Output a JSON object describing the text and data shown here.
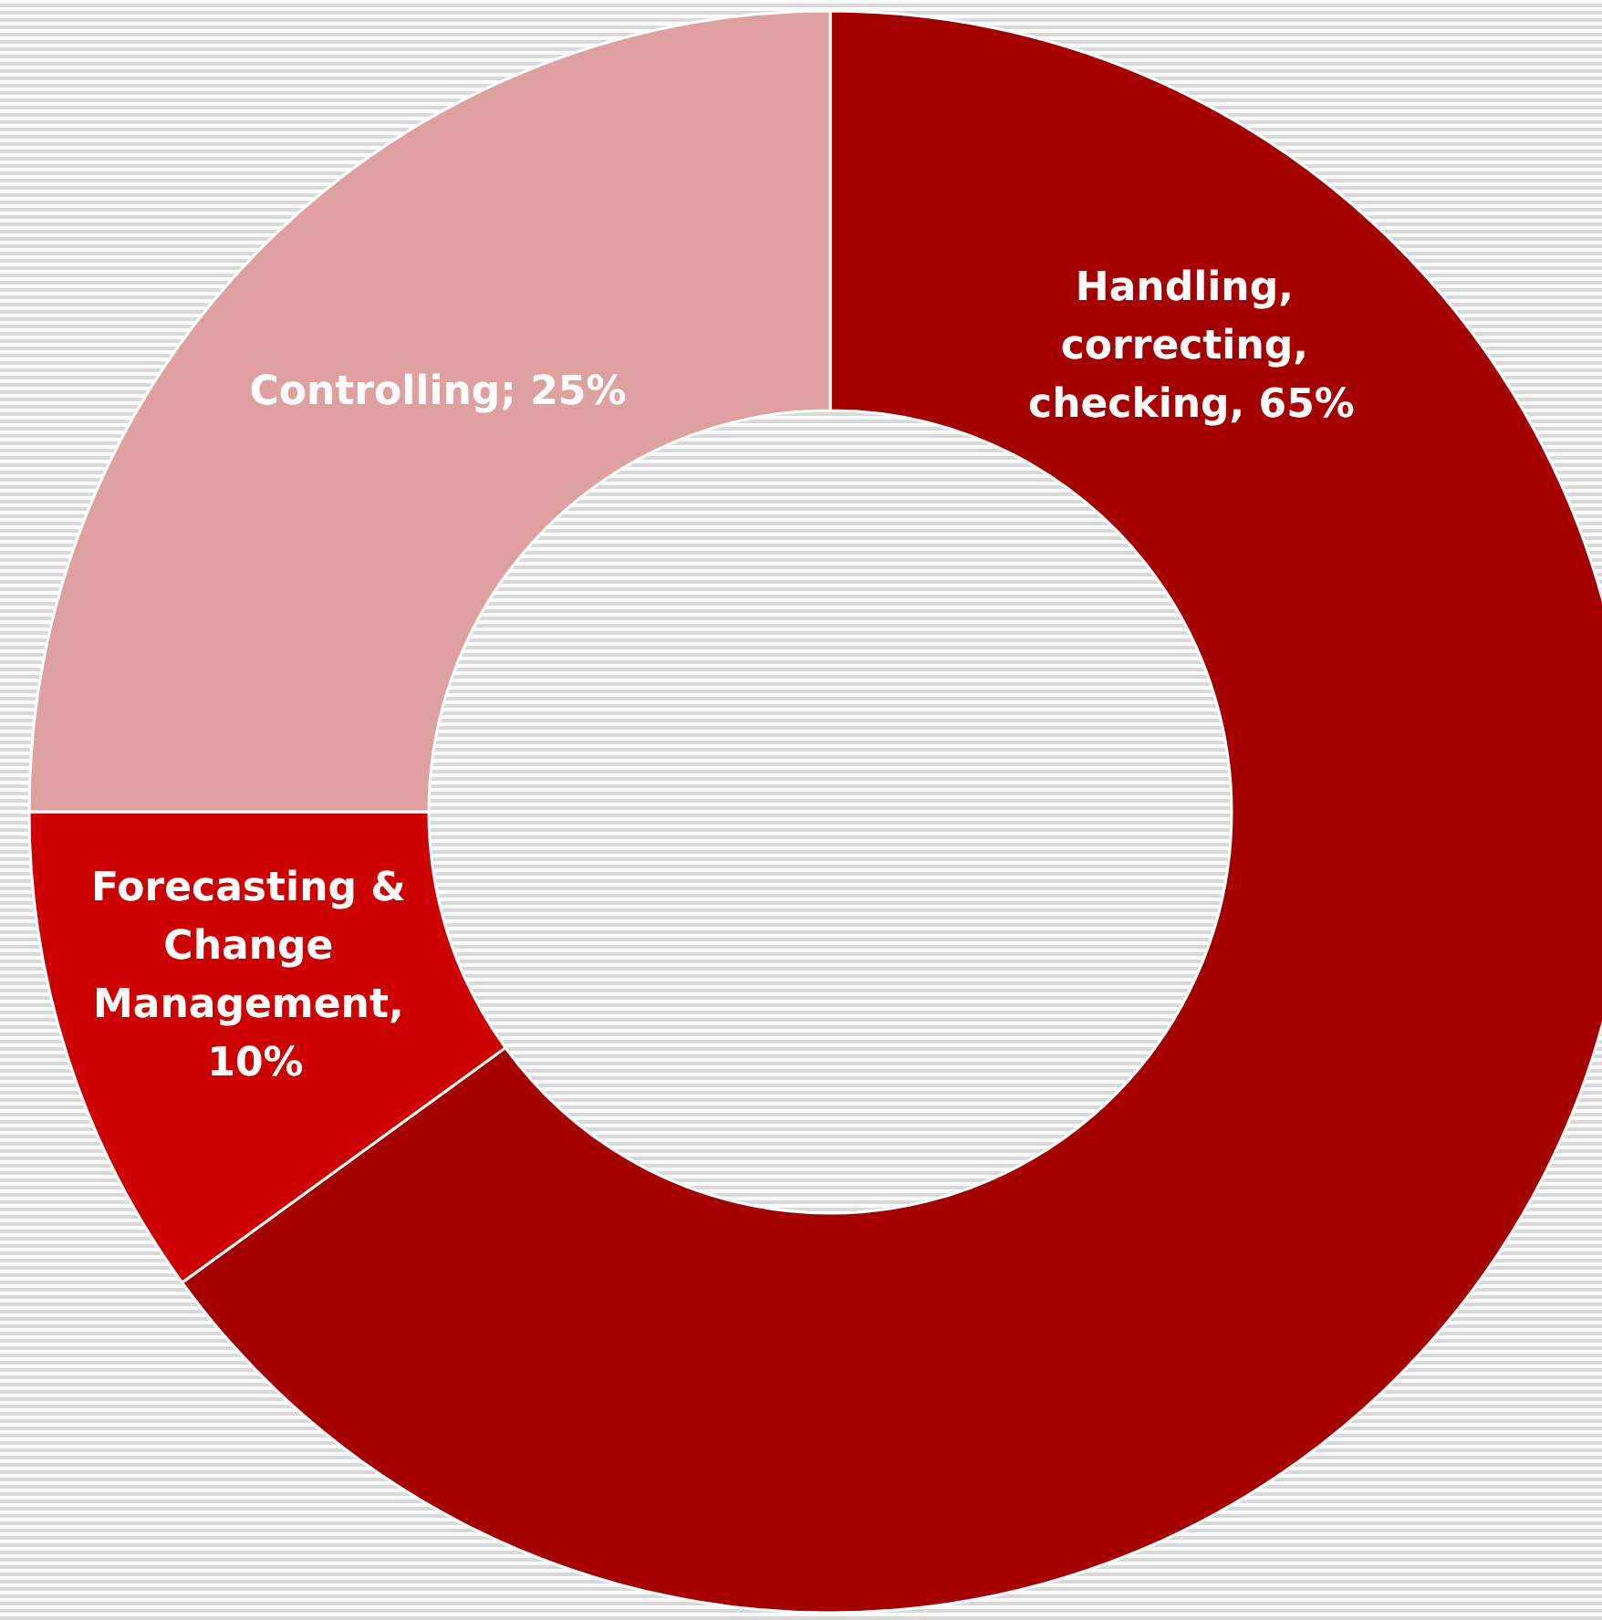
{
  "chart_data": {
    "type": "donut",
    "categories": [
      "Handling, correcting, checking, 65%",
      "Forecasting & Change Management, 10%",
      "Controlling; 25%"
    ],
    "values": [
      65,
      10,
      25
    ],
    "colors": [
      "#a50000",
      "#cc0000",
      "#dfa0a0"
    ],
    "legend": false
  }
}
